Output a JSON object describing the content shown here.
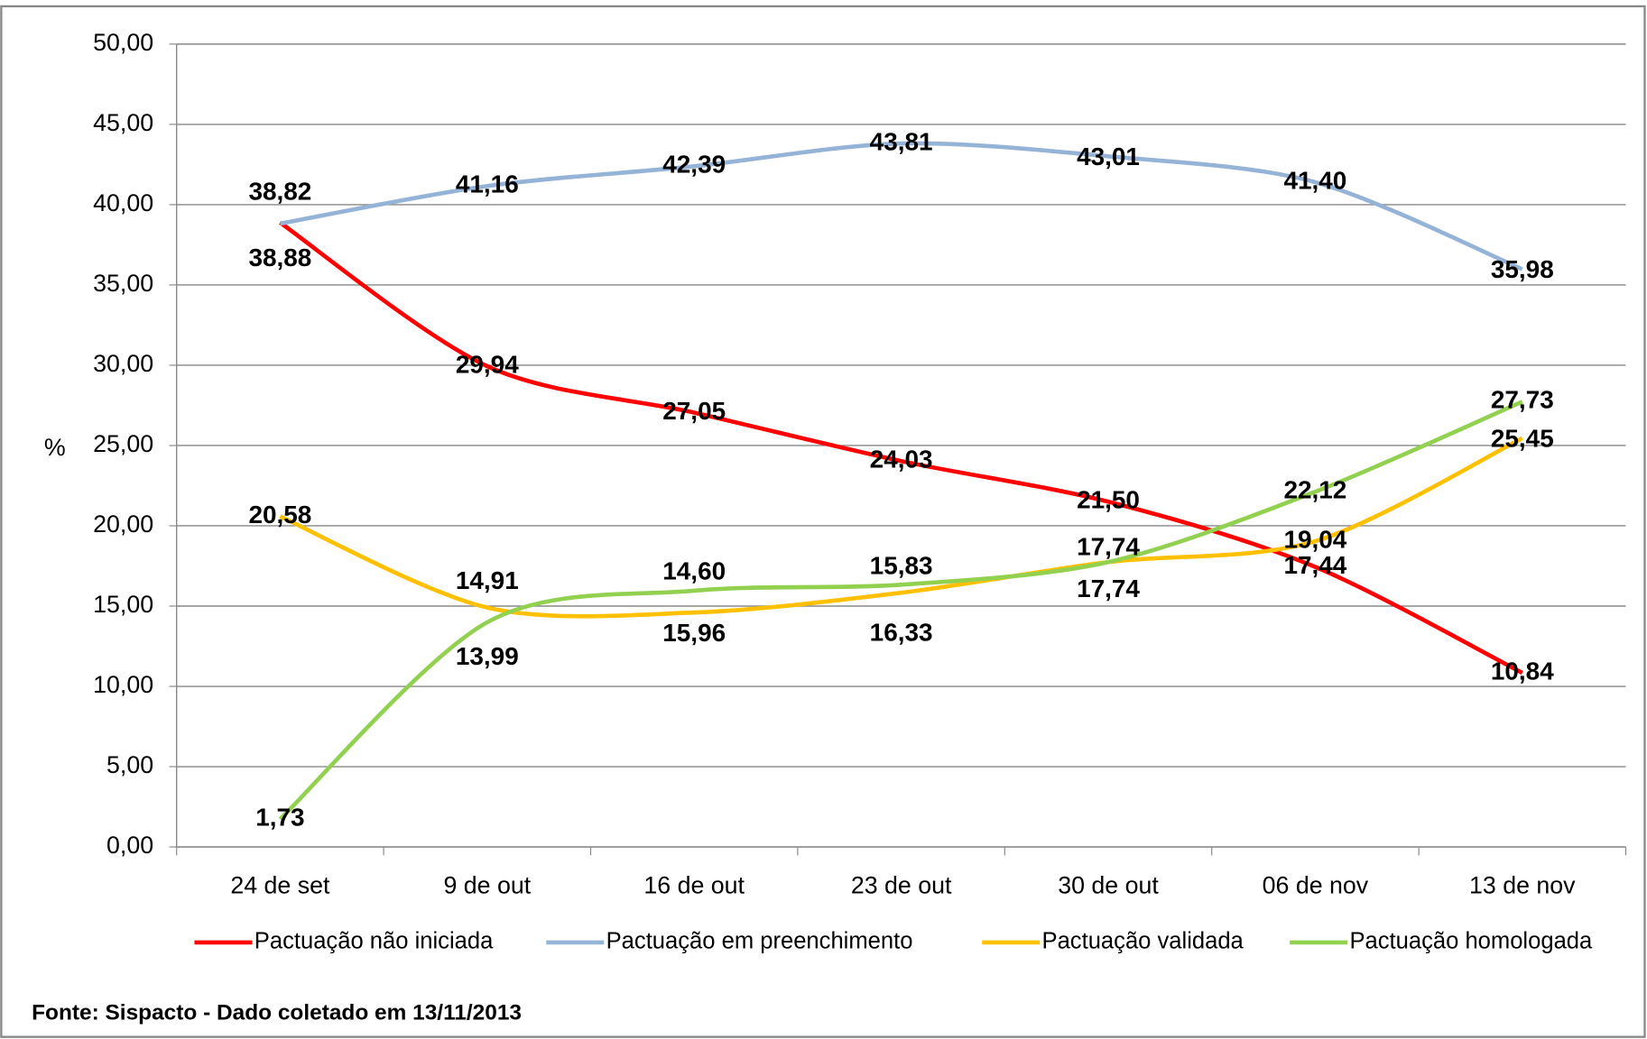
{
  "chart_data": {
    "type": "line",
    "y_axis_label": "%",
    "source": "Fonte: Sispacto - Dado coletado em 13/11/2013",
    "categories": [
      "24 de set",
      "9 de out",
      "16 de out",
      "23 de out",
      "30 de out",
      "06 de nov",
      "13 de nov"
    ],
    "ylim": [
      0,
      50
    ],
    "yticks": [
      {
        "value": 0,
        "label": "0,00"
      },
      {
        "value": 5,
        "label": "5,00"
      },
      {
        "value": 10,
        "label": "10,00"
      },
      {
        "value": 15,
        "label": "15,00"
      },
      {
        "value": 20,
        "label": "20,00"
      },
      {
        "value": 25,
        "label": "25,00"
      },
      {
        "value": 30,
        "label": "30,00"
      },
      {
        "value": 35,
        "label": "35,00"
      },
      {
        "value": 40,
        "label": "40,00"
      },
      {
        "value": 45,
        "label": "45,00"
      },
      {
        "value": 50,
        "label": "50,00"
      }
    ],
    "grid": true,
    "legend": "bottom",
    "series": [
      {
        "name": "Pactuação não iniciada",
        "color": "#ff0000",
        "values": [
          38.88,
          29.94,
          27.05,
          24.03,
          21.5,
          17.44,
          10.84
        ],
        "value_labels": [
          "38,88",
          "29,94",
          "27,05",
          "24,03",
          "21,50",
          "17,44",
          "10,84"
        ]
      },
      {
        "name": "Pactuação em preenchimento",
        "color": "#95b3d7",
        "values": [
          38.82,
          41.16,
          42.39,
          43.81,
          43.01,
          41.4,
          35.98
        ],
        "value_labels": [
          "38,82",
          "41,16",
          "42,39",
          "43,81",
          "43,01",
          "41,40",
          "35,98"
        ]
      },
      {
        "name": "Pactuação validada",
        "color": "#ffc000",
        "values": [
          20.58,
          14.91,
          14.6,
          15.83,
          17.74,
          19.04,
          25.45
        ],
        "value_labels": [
          "20,58",
          "14,91",
          "14,60",
          "15,83",
          "17,74",
          "19,04",
          "25,45"
        ]
      },
      {
        "name": "Pactuação homologada",
        "color": "#92d050",
        "values": [
          1.73,
          13.99,
          15.96,
          16.33,
          17.74,
          22.12,
          27.73
        ],
        "value_labels": [
          "1,73",
          "13,99",
          "15,96",
          "16,33",
          "17,74",
          "22,12",
          "27,73"
        ]
      }
    ]
  }
}
